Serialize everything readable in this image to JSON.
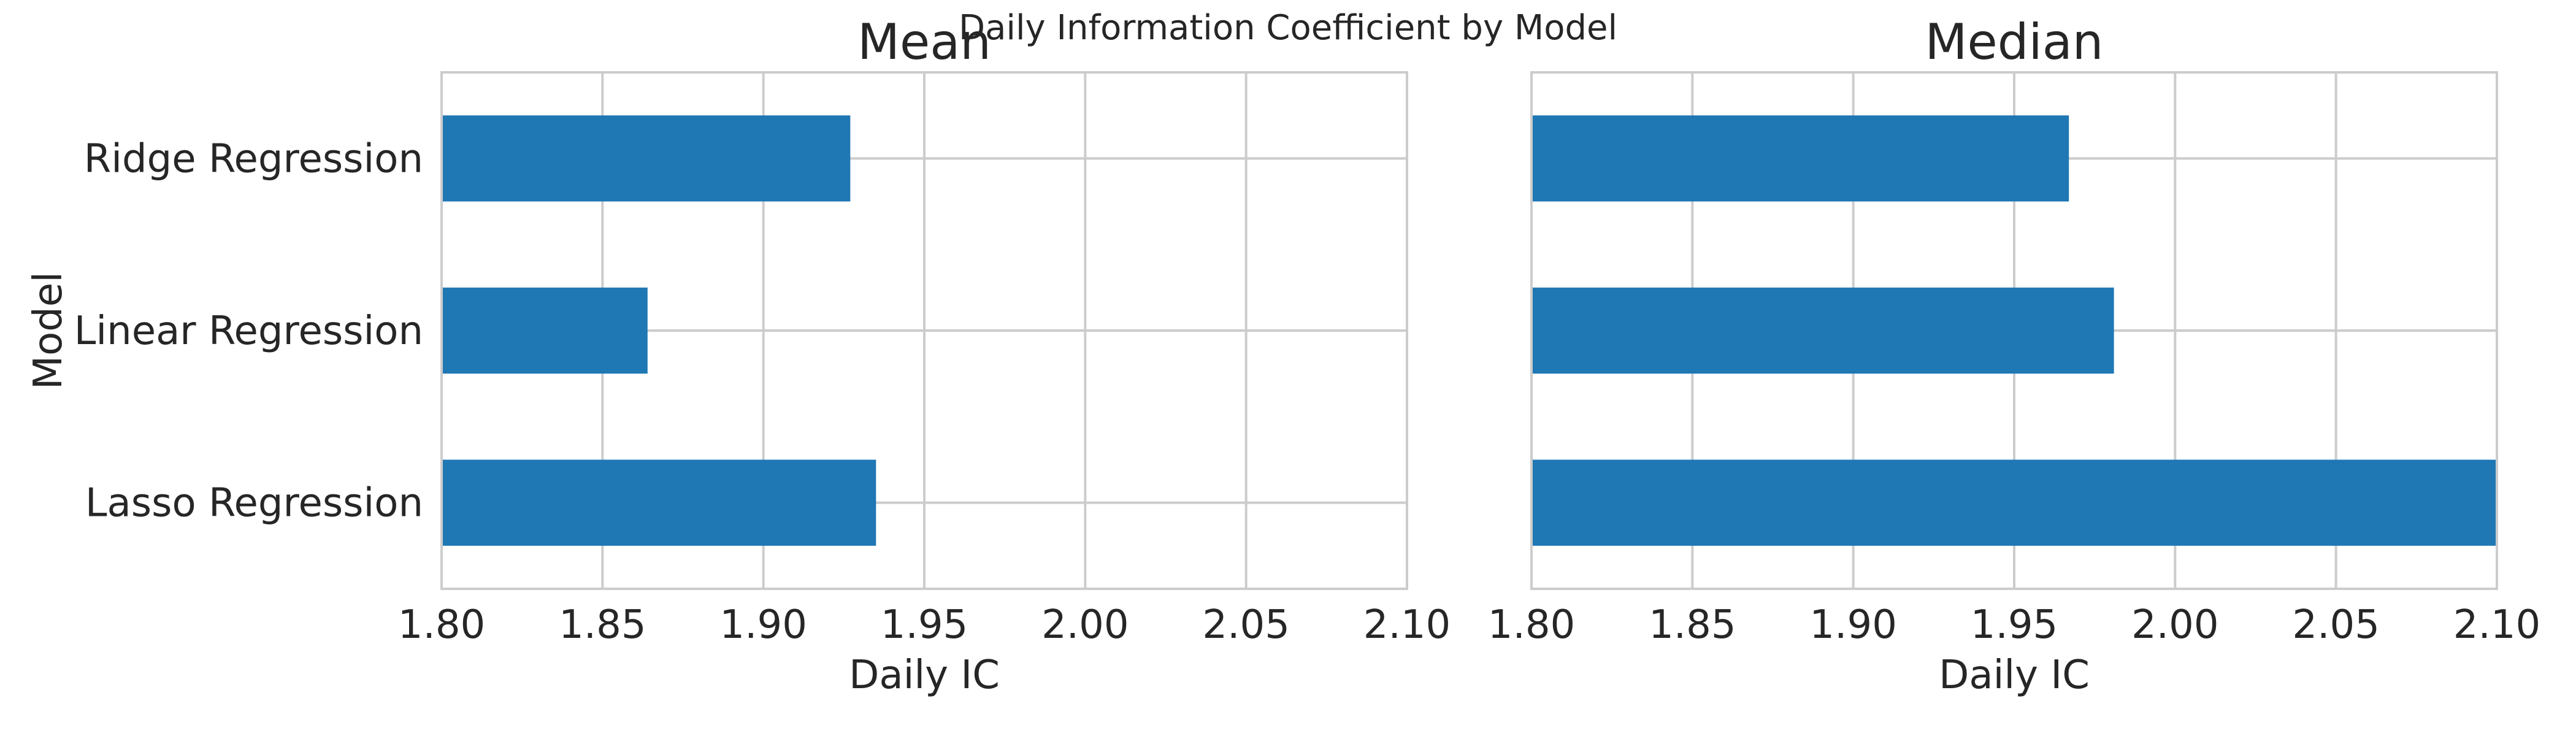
{
  "title": "Daily Information Coefficient by Model",
  "chart_data": [
    {
      "type": "bar",
      "orientation": "horizontal",
      "title": "Mean",
      "categories": [
        "Ridge Regression",
        "Linear Regression",
        "Lasso Regression"
      ],
      "values": [
        1.927,
        1.864,
        1.935
      ],
      "xlabel": "Daily IC",
      "ylabel": "Model",
      "xlim": [
        1.8,
        2.1
      ],
      "xticks": [
        "1.80",
        "1.85",
        "1.90",
        "1.95",
        "2.00",
        "2.05",
        "2.10"
      ],
      "color": "#1f77b4",
      "grid": true
    },
    {
      "type": "bar",
      "orientation": "horizontal",
      "title": "Median",
      "categories": [
        "Ridge Regression",
        "Linear Regression",
        "Lasso Regression"
      ],
      "values": [
        1.967,
        1.981,
        2.1
      ],
      "xlabel": "Daily IC",
      "ylabel": "",
      "xlim": [
        1.8,
        2.1
      ],
      "xticks": [
        "1.80",
        "1.85",
        "1.90",
        "1.95",
        "2.00",
        "2.05",
        "2.10"
      ],
      "color": "#1f77b4",
      "grid": true
    }
  ]
}
